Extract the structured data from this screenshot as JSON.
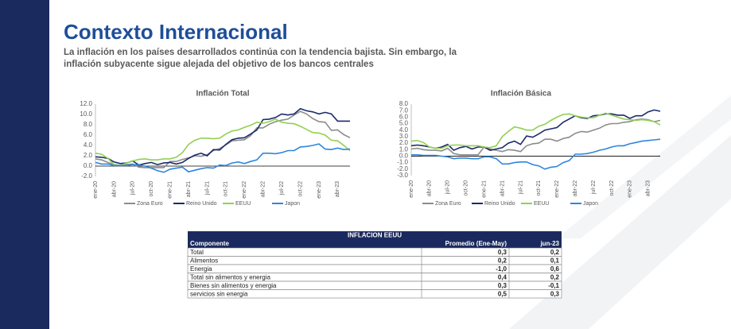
{
  "title": "Contexto Internacional",
  "subtitle": [
    "La inflación en los países desarrollados continúa con la tendencia bajista. Sin embargo, la",
    "inflación subyacente sigue alejada del objetivo de los bancos centrales"
  ],
  "chart_data": [
    {
      "type": "line",
      "title": "Inflación Total",
      "categories": [
        "ene-20",
        null,
        null,
        "abr-20",
        null,
        null,
        "jul-20",
        null,
        null,
        "oct-20",
        null,
        null,
        "ene-21",
        null,
        null,
        "abr-21",
        null,
        null,
        "jul-21",
        null,
        null,
        "oct-21",
        null,
        null,
        "ene-22",
        null,
        null,
        "abr-22",
        null,
        null,
        "jul-22",
        null,
        null,
        "oct-22",
        null,
        null,
        "ene-23",
        null,
        null,
        "abr-23",
        null,
        null
      ],
      "ylim": [
        -2,
        12
      ],
      "yticks": [
        {
          "value": 12,
          "label": "12.0"
        },
        {
          "value": 10,
          "label": "10.0"
        },
        {
          "value": 8,
          "label": "8.0"
        },
        {
          "value": 6,
          "label": "6.0"
        },
        {
          "value": 4,
          "label": "4.0"
        },
        {
          "value": 2,
          "label": "2.0"
        },
        {
          "value": 0,
          "label": "0.0"
        },
        {
          "value": -2,
          "label": "-2.0"
        }
      ],
      "grid": false,
      "series": [
        {
          "name": "Zona Euro",
          "color": "#8c8c8c",
          "values": [
            1.4,
            1.2,
            0.7,
            0.3,
            0.1,
            0.3,
            0.4,
            -0.2,
            -0.3,
            -0.3,
            -0.3,
            -0.3,
            0.9,
            0.9,
            1.3,
            1.6,
            2.0,
            1.9,
            2.2,
            3.0,
            3.4,
            4.1,
            4.9,
            5.0,
            5.1,
            5.9,
            7.4,
            7.4,
            8.1,
            8.6,
            8.9,
            9.1,
            9.9,
            10.6,
            10.1,
            9.2,
            8.6,
            8.5,
            6.9,
            7.0,
            6.1,
            5.5
          ]
        },
        {
          "name": "Reino Unido",
          "color": "#1b2a6b",
          "values": [
            1.8,
            1.7,
            1.5,
            0.8,
            0.5,
            0.6,
            1.0,
            0.2,
            0.5,
            0.7,
            0.3,
            0.6,
            0.7,
            0.4,
            0.7,
            1.5,
            2.1,
            2.5,
            2.0,
            3.2,
            3.1,
            4.2,
            5.1,
            5.4,
            5.5,
            6.2,
            7.0,
            9.0,
            9.1,
            9.4,
            10.1,
            9.9,
            10.1,
            11.1,
            10.7,
            10.5,
            10.1,
            10.4,
            10.1,
            8.7,
            8.7,
            8.7
          ]
        },
        {
          "name": "EEUU",
          "color": "#92d050",
          "values": [
            2.5,
            2.3,
            1.5,
            0.3,
            0.1,
            0.6,
            1.0,
            1.3,
            1.4,
            1.2,
            1.2,
            1.4,
            1.4,
            1.7,
            2.6,
            4.2,
            5.0,
            5.4,
            5.4,
            5.3,
            5.4,
            6.2,
            6.8,
            7.0,
            7.5,
            7.9,
            8.5,
            8.3,
            8.6,
            9.1,
            8.5,
            8.3,
            8.2,
            7.7,
            7.1,
            6.5,
            6.4,
            6.0,
            5.0,
            4.9,
            4.0,
            3.0
          ]
        },
        {
          "name": "Japon",
          "color": "#2e86de",
          "values": [
            0.7,
            0.4,
            0.4,
            0.1,
            0.1,
            0.1,
            0.3,
            0.2,
            0.0,
            -0.4,
            -0.9,
            -1.2,
            -0.6,
            -0.4,
            -0.2,
            -1.1,
            -0.8,
            -0.5,
            -0.3,
            -0.4,
            0.2,
            0.1,
            0.6,
            0.8,
            0.5,
            0.9,
            1.2,
            2.5,
            2.5,
            2.4,
            2.6,
            3.0,
            3.0,
            3.7,
            3.8,
            4.0,
            4.3,
            3.3,
            3.2,
            3.5,
            3.2,
            3.3
          ]
        }
      ]
    },
    {
      "type": "line",
      "title": "Inflación Básica",
      "categories": [
        "ene-20",
        null,
        null,
        "abr-20",
        null,
        null,
        "jul-20",
        null,
        null,
        "oct-20",
        null,
        null,
        "ene-21",
        null,
        null,
        "abr-21",
        null,
        null,
        "jul-21",
        null,
        null,
        "oct-21",
        null,
        null,
        "ene-22",
        null,
        null,
        "abr-22",
        null,
        null,
        "jul-22",
        null,
        null,
        "oct-22",
        null,
        null,
        "ene-23",
        null,
        null,
        "abr-23",
        null,
        null
      ],
      "ylim": [
        -3,
        8
      ],
      "yticks": [
        {
          "value": 8,
          "label": "8.0"
        },
        {
          "value": 7,
          "label": "7.0"
        },
        {
          "value": 6,
          "label": "6.0"
        },
        {
          "value": 5,
          "label": "5.0"
        },
        {
          "value": 4,
          "label": "4.0"
        },
        {
          "value": 3,
          "label": "3.0"
        },
        {
          "value": 2,
          "label": "2.0"
        },
        {
          "value": 1,
          "label": "1.0"
        },
        {
          "value": 0,
          "label": "0.0"
        },
        {
          "value": -1,
          "label": "-1.0"
        },
        {
          "value": -2,
          "label": "-2.0"
        },
        {
          "value": -3,
          "label": "-3.0"
        }
      ],
      "grid": false,
      "series": [
        {
          "name": "Zona Euro",
          "color": "#8c8c8c",
          "values": [
            1.1,
            1.2,
            1.0,
            0.9,
            0.9,
            0.8,
            1.2,
            0.4,
            0.2,
            0.2,
            0.2,
            0.2,
            1.4,
            1.1,
            0.9,
            0.7,
            1.0,
            0.9,
            0.7,
            1.6,
            1.9,
            2.0,
            2.6,
            2.6,
            2.3,
            2.7,
            2.9,
            3.5,
            3.8,
            3.7,
            4.0,
            4.3,
            4.8,
            5.0,
            5.0,
            5.2,
            5.3,
            5.6,
            5.7,
            5.6,
            5.3,
            5.5
          ]
        },
        {
          "name": "Reino Unido",
          "color": "#1b2a6b",
          "values": [
            1.6,
            1.7,
            1.6,
            1.4,
            1.2,
            1.4,
            1.8,
            0.9,
            1.3,
            1.5,
            1.1,
            1.4,
            1.4,
            0.9,
            1.1,
            1.3,
            2.0,
            2.3,
            1.8,
            3.1,
            2.9,
            3.4,
            4.0,
            4.2,
            4.4,
            5.2,
            5.7,
            6.2,
            5.9,
            5.8,
            6.2,
            6.3,
            6.5,
            6.5,
            6.3,
            6.3,
            5.8,
            6.2,
            6.2,
            6.8,
            7.1,
            6.9
          ]
        },
        {
          "name": "EEUU",
          "color": "#92d050",
          "values": [
            2.3,
            2.4,
            2.1,
            1.4,
            1.2,
            1.2,
            1.6,
            1.7,
            1.7,
            1.6,
            1.6,
            1.6,
            1.4,
            1.3,
            1.6,
            3.0,
            3.8,
            4.5,
            4.3,
            4.0,
            4.0,
            4.6,
            4.9,
            5.5,
            6.0,
            6.4,
            6.5,
            6.2,
            6.0,
            5.9,
            5.9,
            6.3,
            6.6,
            6.3,
            6.0,
            5.7,
            5.6,
            5.5,
            5.6,
            5.5,
            5.3,
            4.8
          ]
        },
        {
          "name": "Japon",
          "color": "#2e86de",
          "values": [
            0.2,
            0.2,
            0.1,
            0.1,
            0.1,
            0.0,
            -0.1,
            -0.4,
            -0.3,
            -0.3,
            -0.4,
            -0.4,
            -0.1,
            -0.1,
            -0.4,
            -1.2,
            -1.2,
            -1.0,
            -0.9,
            -0.9,
            -1.3,
            -1.5,
            -2.0,
            -1.7,
            -1.6,
            -1.0,
            -0.7,
            0.3,
            0.3,
            0.4,
            0.6,
            0.9,
            1.1,
            1.4,
            1.6,
            1.6,
            1.9,
            2.1,
            2.3,
            2.4,
            2.5,
            2.6
          ]
        }
      ]
    }
  ],
  "table": {
    "title": "INFLACION EEUU",
    "columns": [
      "Componente",
      "Promedio (Ene-May)",
      "jun-23"
    ],
    "rows": [
      [
        "Total",
        "0,3",
        "0,2"
      ],
      [
        "Alimentos",
        "0,2",
        "0,1"
      ],
      [
        "Energia",
        "-1,0",
        "0,6"
      ],
      [
        "Total sin alimentos y energia",
        "0,4",
        "0,2"
      ],
      [
        "Bienes sin alimentos y energia",
        "0,3",
        "-0,1"
      ],
      [
        "servicios sin energia",
        "0,5",
        "0,3"
      ]
    ]
  }
}
